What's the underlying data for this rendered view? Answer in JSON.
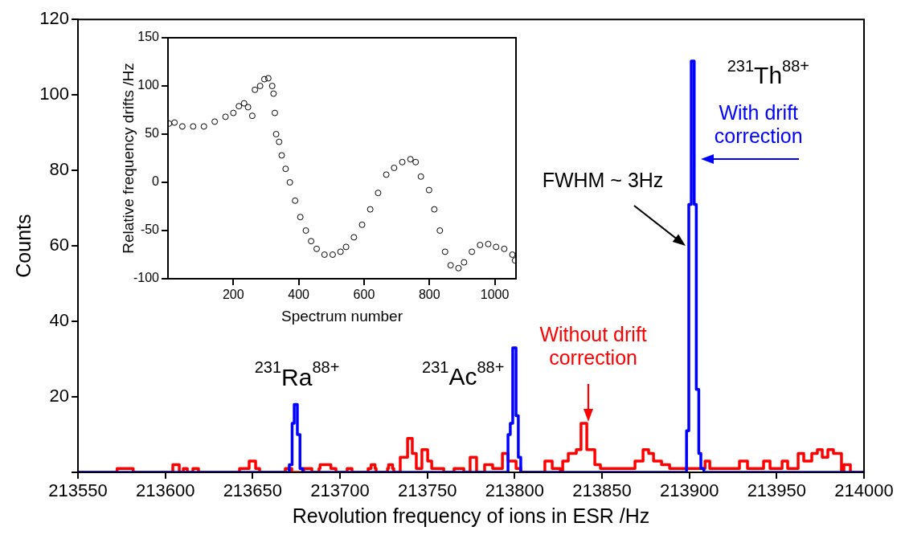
{
  "chart_data": [
    {
      "type": "step",
      "xlabel": "Revolution frequency of ions in ESR /Hz",
      "ylabel": "Counts",
      "xlim": [
        213550,
        214000
      ],
      "xticks": [
        213550,
        213600,
        213650,
        213700,
        213750,
        213800,
        213850,
        213900,
        213950,
        214000
      ],
      "ylim": [
        0,
        120
      ],
      "yticks": [
        {
          "value": 0,
          "label": null
        },
        20,
        40,
        60,
        80,
        100,
        120
      ],
      "grid": false,
      "legend": false,
      "series": [
        {
          "name": "Without drift\ncorrection",
          "color": "#ff0000",
          "x": [
            213550,
            213572.4,
            213581.6,
            213604.3,
            213608,
            213610.3,
            213612.6,
            213615.8,
            213619,
            213642.5,
            213648,
            213651.7,
            213654,
            213668.7,
            213672.4,
            213679.3,
            213683.9,
            213688,
            213688.6,
            213694.8,
            213697.7,
            213704.1,
            213706.9,
            213716.1,
            213717.8,
            213720.1,
            213720.7,
            213727.2,
            213727.8,
            213730.1,
            213730.8,
            213734.5,
            213738.7,
            213741.4,
            213743.7,
            213746.9,
            213750.2,
            213752.5,
            213759.4,
            213765.3,
            213770.9,
            213774.5,
            213778.2,
            213782.8,
            213787.4,
            213793,
            213796.2,
            213800.8,
            213803.5,
            213817.3,
            213821.5,
            213826.1,
            213827.5,
            213830.7,
            213835.3,
            213838,
            213841.3,
            213845.9,
            213849.1,
            213868.9,
            213873.5,
            213876.7,
            213879.5,
            213884.1,
            213888.7,
            213909,
            213911.7,
            213928.7,
            213933.3,
            213942.5,
            213946.2,
            213953.1,
            213956.3,
            213962.3,
            213965.5,
            213970.1,
            213973.3,
            213976.1,
            213979.3,
            213982.5,
            213987.1,
            213988.5,
            213992.2,
            214000
          ],
          "values": [
            0,
            1,
            0,
            2,
            0,
            1,
            0,
            1,
            0,
            1,
            3,
            1,
            0,
            1,
            0,
            1,
            0,
            1,
            2,
            1,
            0,
            1,
            0,
            1,
            2,
            1,
            0,
            1,
            2,
            1,
            0,
            4,
            9,
            5,
            1,
            6,
            3,
            1,
            0,
            1,
            0,
            4,
            0,
            2,
            1,
            5,
            3,
            1,
            0,
            3,
            1,
            0,
            3,
            5,
            6,
            13,
            6,
            2,
            1,
            3,
            6,
            5,
            3,
            2,
            1,
            3,
            1,
            3,
            1,
            3,
            1,
            3,
            1,
            5,
            3,
            5,
            6,
            4,
            6,
            5,
            0,
            2,
            0,
            0
          ]
        },
        {
          "name": "With drift\ncorrection",
          "color": "#0000ff",
          "x": [
            213550,
            213671,
            213672.6,
            213673.8,
            213675.6,
            213677.1,
            213678.7,
            213796.2,
            213797.5,
            213798.9,
            213800.8,
            213802.1,
            213803.5,
            213898.4,
            213899.7,
            213901.1,
            213902.8,
            213904,
            213905.4,
            213906.6,
            213908.3,
            214000
          ],
          "values": [
            0,
            2,
            13,
            18,
            10,
            1,
            0,
            10,
            13,
            33,
            15,
            4,
            0,
            11,
            71,
            109,
            71,
            22,
            5,
            1,
            0,
            0
          ]
        }
      ],
      "annotations": [
        {
          "text": "$^{231}$Ra$^{88+}$",
          "x": 213674,
          "y": 18
        },
        {
          "text": "$^{231}$Ac$^{88+}$",
          "x": 213799,
          "y": 33
        },
        {
          "text": "$^{231}$Th$^{88+}$",
          "x": 213901,
          "y": 109
        },
        {
          "text": "FWHM ~ 3Hz",
          "x": 213899.7,
          "y": 60
        }
      ]
    },
    {
      "type": "scatter",
      "xlabel": "Spectrum number",
      "ylabel": "Relative frequency drifts /Hz",
      "xlim": [
        0,
        1065
      ],
      "xticks": [
        200,
        400,
        600,
        800,
        1000
      ],
      "ylim": [
        -100,
        150
      ],
      "yticks": [
        -100,
        -50,
        0,
        50,
        100,
        150
      ],
      "marker": "circle",
      "color": "#000000",
      "x": [
        3,
        20,
        44,
        77,
        110,
        143,
        176,
        200,
        217,
        233,
        245,
        258,
        266,
        282,
        295,
        307,
        319,
        323,
        327,
        331,
        340,
        348,
        360,
        373,
        389,
        405,
        422,
        438,
        455,
        479,
        504,
        528,
        545,
        569,
        594,
        619,
        643,
        668,
        692,
        717,
        742,
        758,
        774,
        799,
        815,
        832,
        848,
        865,
        889,
        906,
        930,
        955,
        980,
        1004,
        1029,
        1054,
        1062
      ],
      "values": [
        61,
        62,
        58,
        58,
        58,
        63,
        68,
        72,
        79,
        82,
        78,
        69,
        96,
        100,
        107,
        108,
        100,
        92,
        72,
        50,
        42,
        28,
        14,
        0,
        -19,
        -36,
        -50,
        -61,
        -69,
        -75,
        -75,
        -72,
        -67,
        -57,
        -44,
        -28,
        -11,
        8,
        15,
        21,
        24,
        21,
        6,
        -8,
        -28,
        -50,
        -72,
        -86,
        -89,
        -83,
        -72,
        -65,
        -64,
        -67,
        -69,
        -75,
        -81
      ]
    }
  ]
}
